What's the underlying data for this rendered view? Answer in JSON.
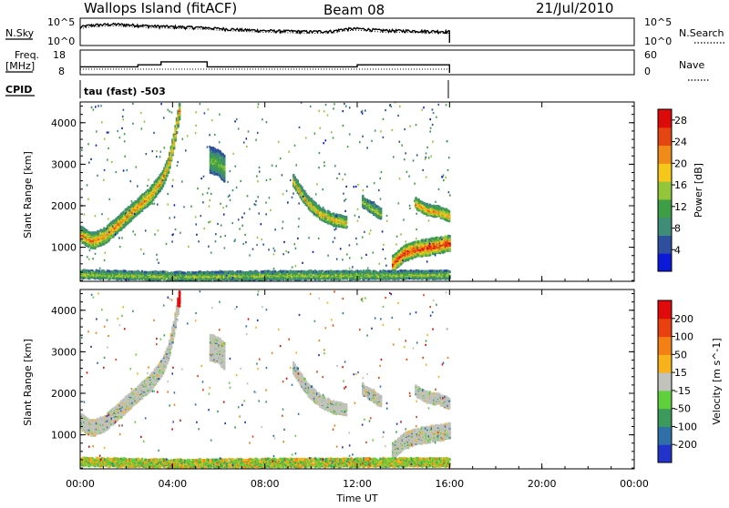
{
  "header": {
    "station": "Wallops Island (fitACF)",
    "beam": "Beam 08",
    "date": "21/Jul/2010"
  },
  "labels": {
    "nsky": "N.Sky",
    "nsearch": "N.Search",
    "freq_line1": "Freq.",
    "freq_line2": "[MHz]",
    "nave": "Nave",
    "cpid": "CPID",
    "cpid_value": "tau (fast) -503",
    "x_axis": "Time UT",
    "y_axis_power": "Slant Range [km]",
    "y_axis_velocity": "Slant Range [km]"
  },
  "chart_data": [
    {
      "type": "line",
      "name": "noise",
      "xlabel": "",
      "ylabel": "N.Sky",
      "yscale": "log",
      "y_ticks": [
        "10^0",
        "10^5"
      ],
      "y2_label": "N.Search",
      "y2_ticks": [
        "10^0",
        "10^5"
      ],
      "x": [
        0,
        0.5,
        1,
        1.5,
        2,
        2.5,
        3,
        3.5,
        4,
        4.5,
        5,
        6,
        7,
        8,
        9,
        10,
        11,
        11.5,
        12,
        12.5,
        13,
        14,
        15,
        16
      ],
      "values": [
        3000,
        9000,
        12000,
        15000,
        11000,
        9000,
        6000,
        5000,
        4000,
        3500,
        3000,
        1500,
        800,
        500,
        400,
        300,
        400,
        1200,
        1500,
        1000,
        600,
        500,
        400,
        300
      ]
    },
    {
      "type": "line",
      "name": "frequency",
      "ylabel": "Freq. [MHz]",
      "ylim": [
        8,
        18
      ],
      "y_ticks": [
        8,
        18
      ],
      "y2_label": "Nave",
      "y2_ticks": [
        0,
        60
      ],
      "x": [
        0,
        2.5,
        2.5,
        3.5,
        3.5,
        5.5,
        5.5,
        12,
        12,
        16
      ],
      "values": [
        11,
        11,
        12,
        12,
        13.5,
        13.5,
        11,
        11,
        12,
        12
      ]
    },
    {
      "type": "heatmap",
      "name": "power",
      "ylabel": "Slant Range [km]",
      "ylim": [
        180,
        4500
      ],
      "y_ticks": [
        1000,
        2000,
        3000,
        4000
      ],
      "xlim": [
        0,
        24
      ],
      "x_ticks": [
        "00:00",
        "04:00",
        "08:00",
        "12:00",
        "16:00",
        "20:00",
        "00:00"
      ],
      "colorbar": {
        "label": "Power [dB]",
        "ticks": [
          4,
          8,
          12,
          16,
          20,
          24,
          28
        ],
        "range": [
          0,
          30
        ],
        "colors": [
          "#0a1ad8",
          "#2d4f9e",
          "#3f8c77",
          "#3e9e46",
          "#93c63a",
          "#f5c71a",
          "#f08a18",
          "#e54510",
          "#dd0a0a"
        ]
      },
      "features": [
        {
          "t": [
            0,
            4.3
          ],
          "r": [
            [
              0,
              1300
            ],
            [
              0.5,
              1150
            ],
            [
              1,
              1250
            ],
            [
              1.5,
              1500
            ],
            [
              2,
              1750
            ],
            [
              2.5,
              2000
            ],
            [
              3,
              2250
            ],
            [
              3.5,
              2600
            ],
            [
              3.8,
              3000
            ],
            [
              4,
              3500
            ],
            [
              4.3,
              4400
            ]
          ],
          "peak": 22,
          "width": 180
        },
        {
          "t": [
            5.6,
            6.2
          ],
          "r": [
            [
              5.6,
              3100
            ],
            [
              5.9,
              3050
            ],
            [
              6.2,
              2900
            ]
          ],
          "peak": 14,
          "width": 300
        },
        {
          "t": [
            9.2,
            11.5
          ],
          "r": [
            [
              9.2,
              2600
            ],
            [
              9.8,
              2100
            ],
            [
              10.4,
              1800
            ],
            [
              11,
              1650
            ],
            [
              11.5,
              1600
            ]
          ],
          "peak": 20,
          "width": 140
        },
        {
          "t": [
            12.2,
            13
          ],
          "r": [
            [
              12.2,
              2100
            ],
            [
              13,
              1800
            ]
          ],
          "peak": 16,
          "width": 130
        },
        {
          "t": [
            13.5,
            16
          ],
          "r": [
            [
              13.5,
              600
            ],
            [
              14,
              850
            ],
            [
              14.5,
              950
            ],
            [
              15,
              1000
            ],
            [
              15.5,
              1050
            ],
            [
              16,
              1100
            ]
          ],
          "peak": 27,
          "width": 180
        },
        {
          "t": [
            14.5,
            16
          ],
          "r": [
            [
              14.5,
              2050
            ],
            [
              15,
              1900
            ],
            [
              15.5,
              1850
            ],
            [
              16,
              1750
            ]
          ],
          "peak": 22,
          "width": 130
        },
        {
          "t": [
            0,
            16
          ],
          "r": [
            [
              0,
              350
            ],
            [
              4,
              300
            ],
            [
              8,
              320
            ],
            [
              12,
              330
            ],
            [
              16,
              340
            ]
          ],
          "peak": 16,
          "width": 90
        }
      ]
    },
    {
      "type": "heatmap",
      "name": "velocity",
      "ylabel": "Slant Range [km]",
      "ylim": [
        180,
        4500
      ],
      "y_ticks": [
        1000,
        2000,
        3000,
        4000
      ],
      "xlim": [
        0,
        24
      ],
      "x_ticks": [
        "00:00",
        "04:00",
        "08:00",
        "12:00",
        "16:00",
        "20:00",
        "00:00"
      ],
      "colorbar": {
        "label": "Velocity [m s^-1]",
        "ticks": [
          200,
          100,
          50,
          15,
          -15,
          -50,
          -100,
          -200
        ],
        "colors": [
          "#2233cc",
          "#2f70a8",
          "#3c9a5a",
          "#5fcf3c",
          "#c2c2bc",
          "#f8b21c",
          "#f47f14",
          "#e8400e",
          "#e00a0a"
        ]
      }
    }
  ]
}
